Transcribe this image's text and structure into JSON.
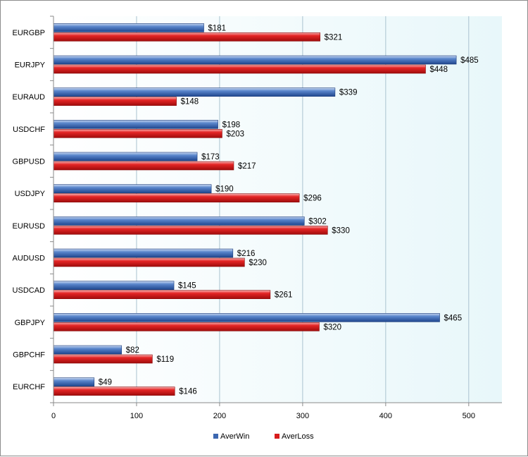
{
  "chart_data": {
    "type": "bar",
    "orientation": "horizontal",
    "categories": [
      "EURGBP",
      "EURJPY",
      "EURAUD",
      "USDCHF",
      "GBPUSD",
      "USDJPY",
      "EURUSD",
      "AUDUSD",
      "USDCAD",
      "GBPJPY",
      "GBPCHF",
      "EURCHF"
    ],
    "series": [
      {
        "name": "AverWin",
        "values": [
          181,
          485,
          339,
          198,
          173,
          190,
          302,
          216,
          145,
          465,
          82,
          49
        ],
        "labels": [
          "$181",
          "$485",
          "$339",
          "$198",
          "$173",
          "$190",
          "$302",
          "$216",
          "$145",
          "$465",
          "$82",
          "$49"
        ]
      },
      {
        "name": "AverLoss",
        "values": [
          321,
          448,
          148,
          203,
          217,
          296,
          330,
          230,
          261,
          320,
          119,
          146
        ],
        "labels": [
          "$321",
          "$448",
          "$148",
          "$203",
          "$217",
          "$296",
          "$330",
          "$230",
          "$261",
          "$320",
          "$119",
          "$146"
        ]
      }
    ],
    "xlim": [
      0,
      540
    ],
    "xticks": [
      0,
      100,
      200,
      300,
      400,
      500
    ],
    "xtick_labels": [
      "0",
      "100",
      "200",
      "300",
      "400",
      "500"
    ],
    "grid": true,
    "legend": "bottom-center",
    "colors": {
      "AverWin": "#4a73b8",
      "AverLoss": "#dd2222"
    }
  }
}
